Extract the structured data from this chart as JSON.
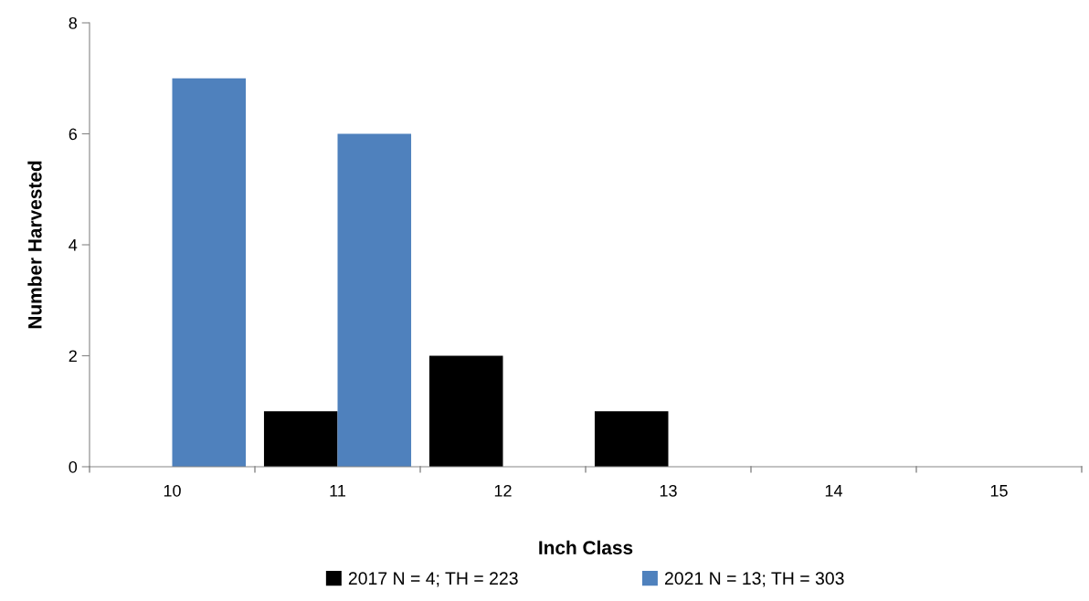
{
  "chart_data": {
    "type": "bar",
    "xlabel": "Inch Class",
    "ylabel": "Number Harvested",
    "categories": [
      "10",
      "11",
      "12",
      "13",
      "14",
      "15"
    ],
    "series": [
      {
        "name": "2017 N = 4; TH = 223",
        "color": "#000000",
        "values": [
          0,
          1,
          2,
          1,
          0,
          0
        ]
      },
      {
        "name": "2021 N = 13; TH = 303",
        "color": "#4f81bd",
        "values": [
          7,
          6,
          0,
          0,
          0,
          0
        ]
      }
    ],
    "ylim": [
      0,
      8
    ],
    "yticks": [
      0,
      2,
      4,
      6,
      8
    ],
    "grid": false,
    "legend": "bottom"
  }
}
